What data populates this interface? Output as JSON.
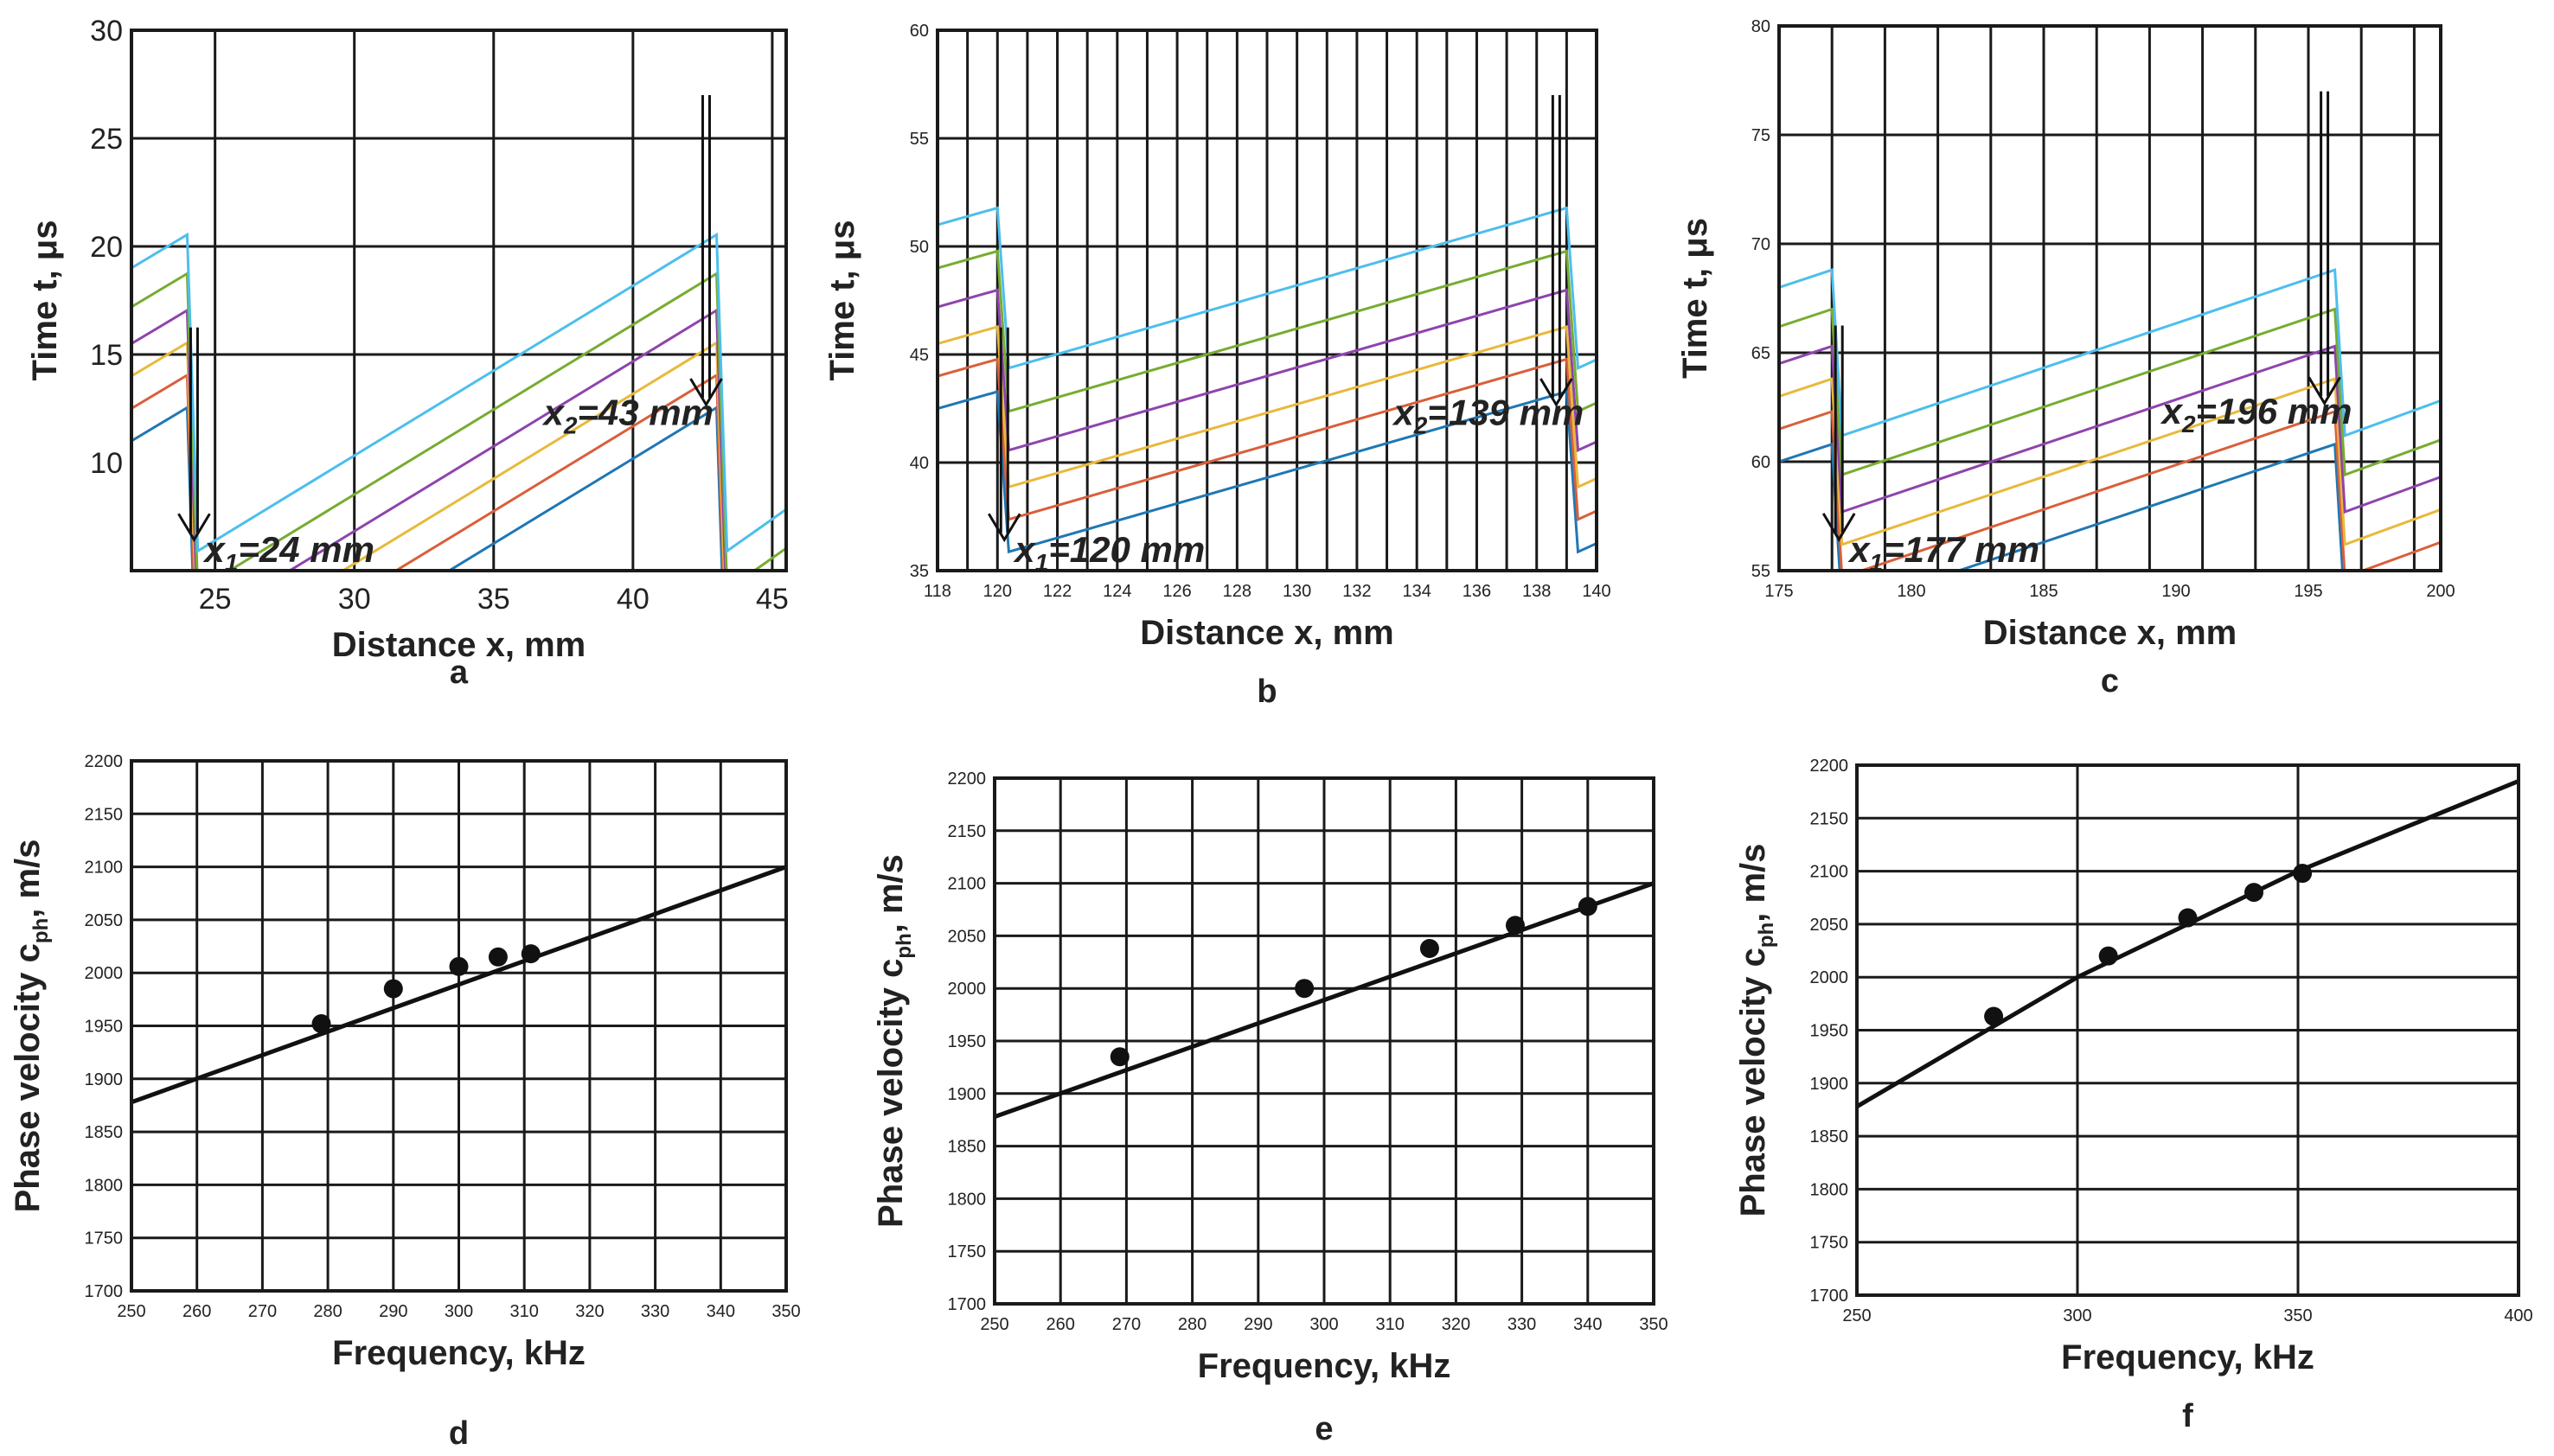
{
  "colors": {
    "series": [
      "#1f77b4",
      "#d95f3b",
      "#e8b93c",
      "#8e44ad",
      "#77ac30",
      "#4dbeee"
    ],
    "grid": "#1a1a1a",
    "curve": "#111111",
    "marker": "#111111"
  },
  "chart_data": [
    {
      "id": "a",
      "type": "line",
      "letter": "a",
      "xlabel": "Distance x, mm",
      "ylabel": "Time t, μs",
      "xlim": [
        22,
        45.5
      ],
      "ylim": [
        5,
        30
      ],
      "xticks": [
        25,
        30,
        35,
        40,
        45
      ],
      "yticks": [
        10,
        15,
        20,
        25,
        30
      ],
      "xgrid": [
        25,
        30,
        35,
        40,
        45
      ],
      "ygrid": [
        15,
        20,
        25
      ],
      "markers": [
        {
          "label_main": "x",
          "sub": "1",
          "label_rest": "=24 mm",
          "x": 24
        },
        {
          "label_main": "x",
          "sub": "2",
          "label_rest": "=43 mm",
          "x": 43
        }
      ],
      "series": [
        {
          "name": "1",
          "y_start": 11.0,
          "slope": 0.77
        },
        {
          "name": "2",
          "y_start": 12.5,
          "slope": 0.77
        },
        {
          "name": "3",
          "y_start": 14.0,
          "slope": 0.77
        },
        {
          "name": "4",
          "y_start": 15.5,
          "slope": 0.77
        },
        {
          "name": "5",
          "y_start": 17.2,
          "slope": 0.77
        },
        {
          "name": "6",
          "y_start": 19.0,
          "slope": 0.77
        }
      ]
    },
    {
      "id": "b",
      "type": "line",
      "letter": "b",
      "xlabel": "Distance x, mm",
      "ylabel": "Time t, μs",
      "xlim": [
        118,
        140
      ],
      "ylim": [
        35,
        60
      ],
      "xticks": [
        118,
        120,
        122,
        124,
        126,
        128,
        130,
        132,
        134,
        136,
        138,
        140
      ],
      "yticks": [
        35,
        40,
        45,
        50,
        55,
        60
      ],
      "xgrid": [
        119,
        120,
        121,
        122,
        123,
        124,
        125,
        126,
        127,
        128,
        129,
        130,
        131,
        132,
        133,
        134,
        135,
        136,
        137,
        138,
        139
      ],
      "ygrid": [
        40,
        45,
        50,
        55
      ],
      "markers": [
        {
          "label_main": "x",
          "sub": "1",
          "label_rest": "=120 mm",
          "x": 120
        },
        {
          "label_main": "x",
          "sub": "2",
          "label_rest": "=139 mm",
          "x": 139
        }
      ],
      "series": [
        {
          "name": "1",
          "y_start": 42.5,
          "slope": 0.39
        },
        {
          "name": "2",
          "y_start": 44.0,
          "slope": 0.39
        },
        {
          "name": "3",
          "y_start": 45.5,
          "slope": 0.39
        },
        {
          "name": "4",
          "y_start": 47.2,
          "slope": 0.39
        },
        {
          "name": "5",
          "y_start": 49.0,
          "slope": 0.39
        },
        {
          "name": "6",
          "y_start": 51.0,
          "slope": 0.39
        }
      ]
    },
    {
      "id": "c",
      "type": "line",
      "letter": "c",
      "xlabel": "Distance x, mm",
      "ylabel": "Time t, μs",
      "xlim": [
        175,
        200
      ],
      "ylim": [
        55,
        80
      ],
      "xticks": [
        175,
        180,
        185,
        190,
        195,
        200
      ],
      "yticks": [
        55,
        60,
        65,
        70,
        75,
        80
      ],
      "xgrid": [
        177,
        179,
        181,
        183,
        185,
        187,
        189,
        191,
        193,
        195,
        197,
        199
      ],
      "ygrid": [
        60,
        65,
        70,
        75
      ],
      "markers": [
        {
          "label_main": "x",
          "sub": "1",
          "label_rest": "=177 mm",
          "x": 177
        },
        {
          "label_main": "x",
          "sub": "2",
          "label_rest": "=196 mm",
          "x": 196
        }
      ],
      "series": [
        {
          "name": "1",
          "y_start": 60.0,
          "slope": 0.4
        },
        {
          "name": "2",
          "y_start": 61.5,
          "slope": 0.4
        },
        {
          "name": "3",
          "y_start": 63.0,
          "slope": 0.4
        },
        {
          "name": "4",
          "y_start": 64.5,
          "slope": 0.4
        },
        {
          "name": "5",
          "y_start": 66.2,
          "slope": 0.4
        },
        {
          "name": "6",
          "y_start": 68.0,
          "slope": 0.4
        }
      ]
    },
    {
      "id": "d",
      "type": "scatter",
      "letter": "d",
      "xlabel": "Frequency, kHz",
      "ylabel": "Phase velocity c",
      "ylabel_sub": "ph",
      "ylabel_rest": ", m/s",
      "xlim": [
        250,
        350
      ],
      "ylim": [
        1700,
        2200
      ],
      "xticks": [
        250,
        260,
        270,
        280,
        290,
        300,
        310,
        320,
        330,
        340,
        350
      ],
      "yticks": [
        1700,
        1750,
        1800,
        1850,
        1900,
        1950,
        2000,
        2050,
        2100,
        2150,
        2200
      ],
      "xgrid": [
        260,
        270,
        280,
        290,
        300,
        310,
        320,
        330,
        340
      ],
      "ygrid": [
        1750,
        1800,
        1850,
        1900,
        1950,
        2000,
        2050,
        2100,
        2150
      ],
      "curve": [
        [
          250,
          1878
        ],
        [
          350,
          2100
        ]
      ],
      "points": [
        [
          279,
          1952
        ],
        [
          290,
          1985
        ],
        [
          300,
          2006
        ],
        [
          306,
          2015
        ],
        [
          311,
          2018
        ]
      ]
    },
    {
      "id": "e",
      "type": "scatter",
      "letter": "e",
      "xlabel": "Frequency, kHz",
      "ylabel": "Phase velocity c",
      "ylabel_sub": "ph",
      "ylabel_rest": ", m/s",
      "xlim": [
        250,
        350
      ],
      "ylim": [
        1700,
        2200
      ],
      "xticks": [
        250,
        260,
        270,
        280,
        290,
        300,
        310,
        320,
        330,
        340,
        350
      ],
      "yticks": [
        1700,
        1750,
        1800,
        1850,
        1900,
        1950,
        2000,
        2050,
        2100,
        2150,
        2200
      ],
      "xgrid": [
        260,
        270,
        280,
        290,
        300,
        310,
        320,
        330,
        340
      ],
      "ygrid": [
        1750,
        1800,
        1850,
        1900,
        1950,
        2000,
        2050,
        2100,
        2150
      ],
      "curve": [
        [
          250,
          1878
        ],
        [
          350,
          2100
        ]
      ],
      "points": [
        [
          269,
          1935
        ],
        [
          297,
          2000
        ],
        [
          316,
          2038
        ],
        [
          329,
          2060
        ],
        [
          340,
          2078
        ]
      ]
    },
    {
      "id": "f",
      "type": "scatter",
      "letter": "f",
      "xlabel": "Frequency, kHz",
      "ylabel": "Phase velocity c",
      "ylabel_sub": "ph",
      "ylabel_rest": ", m/s",
      "xlim": [
        250,
        400
      ],
      "ylim": [
        1700,
        2200
      ],
      "xticks": [
        250,
        300,
        350,
        400
      ],
      "yticks": [
        1700,
        1750,
        1800,
        1850,
        1900,
        1950,
        2000,
        2050,
        2100,
        2150,
        2200
      ],
      "xgrid": [
        300,
        350
      ],
      "ygrid": [
        1750,
        1800,
        1850,
        1900,
        1950,
        2000,
        2050,
        2100,
        2150
      ],
      "curve": [
        [
          250,
          1878
        ],
        [
          300,
          2000
        ],
        [
          350,
          2100
        ],
        [
          400,
          2185
        ]
      ],
      "points": [
        [
          281,
          1963
        ],
        [
          307,
          2020
        ],
        [
          325,
          2056
        ],
        [
          340,
          2080
        ],
        [
          351,
          2098
        ]
      ]
    }
  ]
}
